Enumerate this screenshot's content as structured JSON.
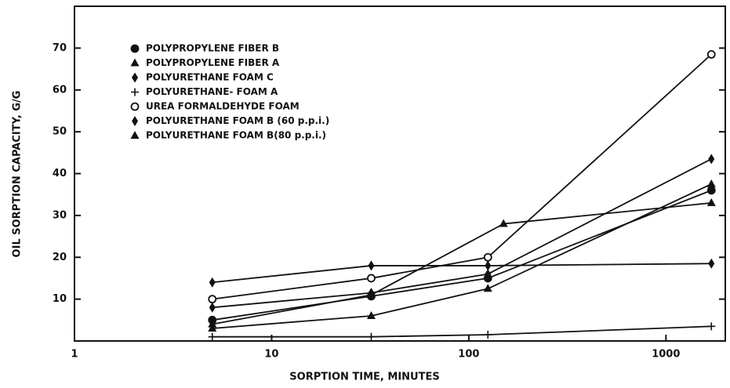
{
  "chart_data": {
    "type": "line",
    "log_x": true,
    "xlabel": "SORPTION TIME, MINUTES",
    "ylabel": "OIL SORPTION CAPACITY, G/G",
    "xlim": [
      1,
      2000
    ],
    "ylim": [
      0,
      80
    ],
    "xticks": [
      1,
      10,
      100,
      1000
    ],
    "yticks": [
      10,
      20,
      30,
      40,
      50,
      60,
      70
    ],
    "legend": "upper left",
    "series": [
      {
        "name": "POLYPROPYLENE FIBER B",
        "color": "#111111",
        "marker": "circle",
        "x": [
          5,
          32,
          125,
          1700
        ],
        "values": [
          5,
          10.7,
          15,
          36
        ]
      },
      {
        "name": "POLYPROPYLENE FIBER A",
        "color": "#111111",
        "marker": "triangle",
        "x": [
          5,
          32,
          150,
          1700
        ],
        "values": [
          4,
          11,
          28,
          33
        ]
      },
      {
        "name": "POLYURETHANE FOAM C",
        "color": "#111111",
        "marker": "diamond",
        "x": [
          5,
          32,
          125,
          1700
        ],
        "values": [
          14,
          18,
          18,
          18.5
        ]
      },
      {
        "name": "POLYURETHANE- FOAM A",
        "color": "#111111",
        "marker": "plus",
        "x": [
          5,
          32,
          125,
          1700
        ],
        "values": [
          1,
          1,
          1.5,
          3.5
        ]
      },
      {
        "name": "UREA FORMALDEHYDE FOAM",
        "color": "#111111",
        "marker": "open-circle",
        "x": [
          5,
          32,
          125,
          1700
        ],
        "values": [
          10,
          15,
          20,
          68.5
        ]
      },
      {
        "name": "POLYURETHANE FOAM B (60 p.p.i.)",
        "color": "#111111",
        "marker": "diamond",
        "x": [
          5,
          32,
          125,
          1700
        ],
        "values": [
          8,
          11.5,
          16,
          43.5
        ]
      },
      {
        "name": "POLYURETHANE FOAM B(80 p.p.i.)",
        "color": "#111111",
        "marker": "triangle",
        "x": [
          5,
          32,
          125,
          1700
        ],
        "values": [
          3,
          6,
          12.5,
          37.5
        ]
      }
    ]
  }
}
